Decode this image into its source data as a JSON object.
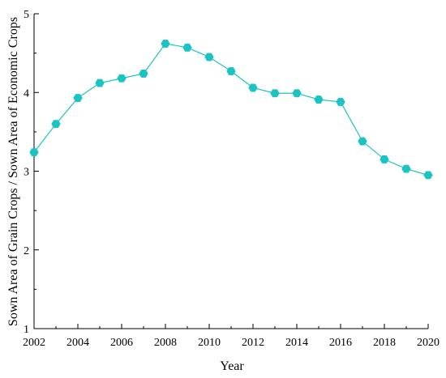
{
  "chart_data": {
    "type": "line",
    "title": "",
    "xlabel": "Year",
    "ylabel": "Sown Area of Grain Crops / Sown Area of Economic Crops",
    "xlim": [
      2002,
      2020
    ],
    "ylim": [
      1,
      5
    ],
    "x_ticks": [
      2002,
      2004,
      2006,
      2008,
      2010,
      2012,
      2014,
      2016,
      2018,
      2020
    ],
    "y_ticks": [
      1,
      2,
      3,
      4,
      5
    ],
    "grid": false,
    "legend": "none",
    "series": [
      {
        "color": "#1cc3c3",
        "marker": "hexagon",
        "x": [
          2002,
          2003,
          2004,
          2005,
          2006,
          2007,
          2008,
          2009,
          2010,
          2011,
          2012,
          2013,
          2014,
          2015,
          2016,
          2017,
          2018,
          2019,
          2020
        ],
        "y": [
          3.24,
          3.6,
          3.93,
          4.12,
          4.18,
          4.24,
          4.62,
          4.57,
          4.45,
          4.27,
          4.06,
          3.99,
          3.99,
          3.91,
          3.88,
          3.38,
          3.15,
          3.03,
          2.95
        ]
      }
    ]
  }
}
